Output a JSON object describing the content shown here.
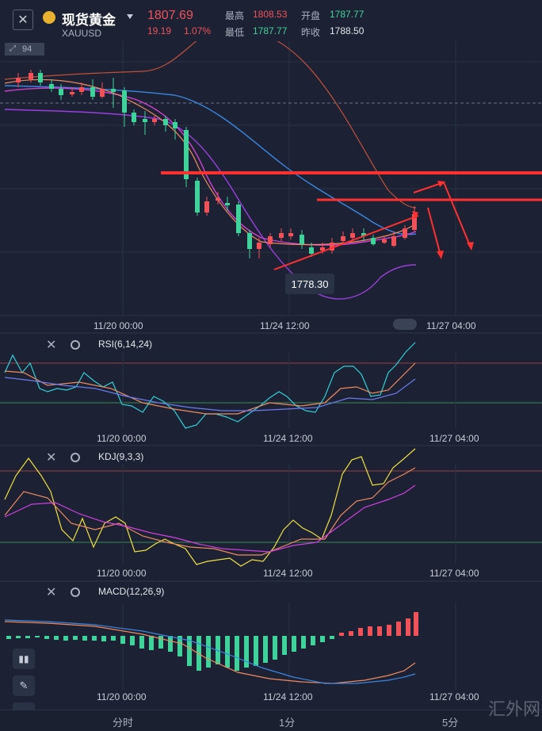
{
  "header": {
    "title": "现货黄金",
    "symbol": "XAUUSD",
    "price": "1807.69",
    "change": "19.19",
    "change_pct": "1.07%",
    "high_label": "最高",
    "high": "1808.53",
    "open_label": "开盘",
    "open": "1787.77",
    "low_label": "最低",
    "low": "1787.77",
    "prev_close_label": "昨收",
    "prev_close": "1788.50"
  },
  "main_chart": {
    "left_tag": "94",
    "callout_low": "1778.30",
    "time_labels": [
      "11/20 00:00",
      "11/24 12:00",
      "11/27 04:00"
    ]
  },
  "indicators": [
    {
      "name": "RSI(6,14,24)",
      "time_labels": [
        "11/20 00:00",
        "11/24 12:00",
        "11/27 04:00"
      ]
    },
    {
      "name": "KDJ(9,3,3)",
      "time_labels": [
        "11/20 00:00",
        "11/24 12:00",
        "11/27 04:00"
      ]
    },
    {
      "name": "MACD(12,26,9)",
      "time_labels": [
        "11/20 00:00",
        "11/24 12:00",
        "11/27 04:00"
      ]
    }
  ],
  "bottom_tabs": [
    "分时",
    "1分",
    "5分"
  ],
  "watermark": "汇外网",
  "colors": {
    "up": "#f0525a",
    "down": "#3fd39b",
    "bg": "#1c2233",
    "annotation": "#ff3030"
  }
}
